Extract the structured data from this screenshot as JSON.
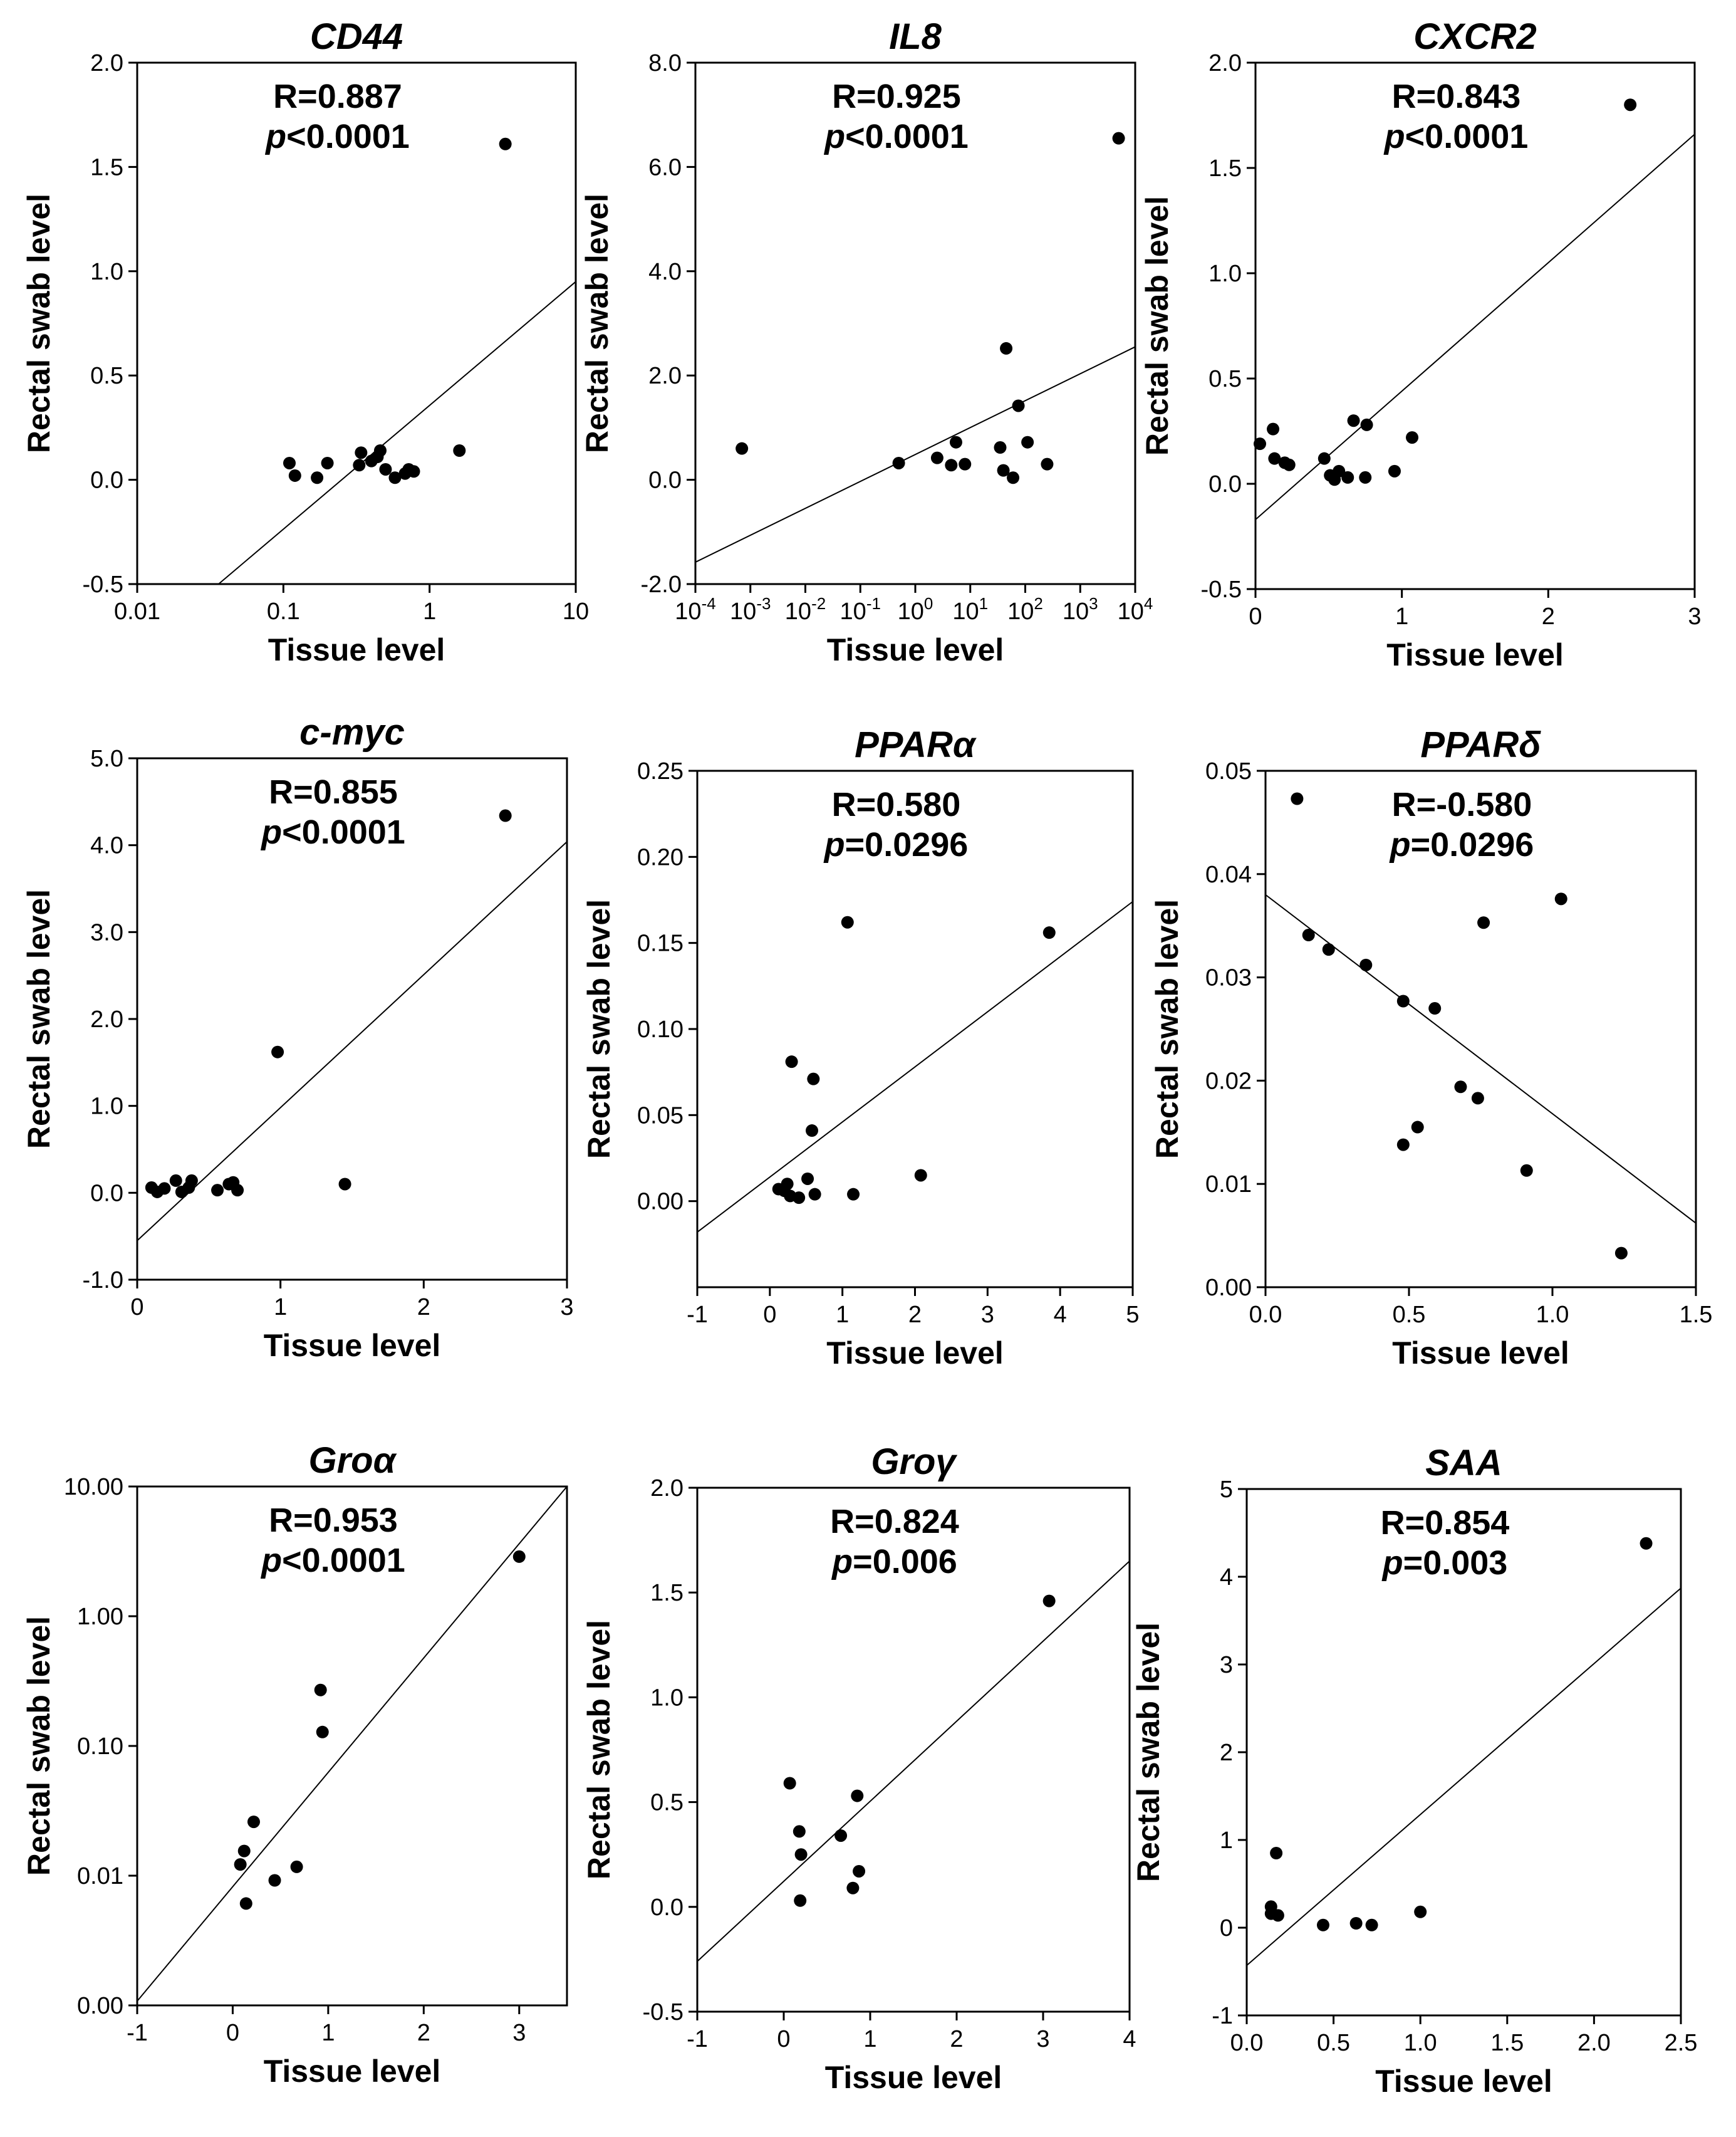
{
  "chart_data": [
    {
      "type": "scatter",
      "title": "CD44",
      "stat_r": "R=0.887",
      "stat_p_symbol": "p",
      "stat_p_rest": "<0.0001",
      "xlabel": "Tissue level",
      "ylabel": "Rectal swab level",
      "xscale": "log",
      "yscale": "linear",
      "xlim": [
        0.01,
        10
      ],
      "ylim": [
        -0.5,
        2.0
      ],
      "xticks": [
        {
          "v": 0.01,
          "label": "0.01"
        },
        {
          "v": 0.1,
          "label": "0.1"
        },
        {
          "v": 1,
          "label": "1"
        },
        {
          "v": 10,
          "label": "10"
        }
      ],
      "yticks": [
        {
          "v": -0.5,
          "label": "-0.5"
        },
        {
          "v": 0.0,
          "label": "0.0"
        },
        {
          "v": 0.5,
          "label": "0.5"
        },
        {
          "v": 1.0,
          "label": "1.0"
        },
        {
          "v": 1.5,
          "label": "1.5"
        },
        {
          "v": 2.0,
          "label": "2.0"
        }
      ],
      "points": [
        [
          0.11,
          0.08
        ],
        [
          0.12,
          0.02
        ],
        [
          0.17,
          0.01
        ],
        [
          0.2,
          0.08
        ],
        [
          0.33,
          0.07
        ],
        [
          0.34,
          0.13
        ],
        [
          0.4,
          0.09
        ],
        [
          0.44,
          0.11
        ],
        [
          0.46,
          0.14
        ],
        [
          0.5,
          0.05
        ],
        [
          0.58,
          0.01
        ],
        [
          0.68,
          0.03
        ],
        [
          0.72,
          0.05
        ],
        [
          0.78,
          0.04
        ],
        [
          1.6,
          0.14
        ],
        [
          3.3,
          1.61
        ]
      ],
      "fit_line": [
        [
          0.036,
          -0.5
        ],
        [
          10,
          0.95
        ]
      ]
    },
    {
      "type": "scatter",
      "title": "IL8",
      "stat_r": "R=0.925",
      "stat_p_symbol": "p",
      "stat_p_rest": "<0.0001",
      "xlabel": "Tissue level",
      "ylabel": "Rectal swab level",
      "xscale": "log",
      "yscale": "linear",
      "xlim": [
        0.0001,
        10000
      ],
      "ylim": [
        -2.0,
        8.0
      ],
      "xticks": [
        {
          "v": 0.0001,
          "base": "10",
          "exp": "-4"
        },
        {
          "v": 0.001,
          "base": "10",
          "exp": "-3"
        },
        {
          "v": 0.01,
          "base": "10",
          "exp": "-2"
        },
        {
          "v": 0.1,
          "base": "10",
          "exp": "-1"
        },
        {
          "v": 1,
          "base": "10",
          "exp": "0"
        },
        {
          "v": 10,
          "base": "10",
          "exp": "1"
        },
        {
          "v": 100,
          "base": "10",
          "exp": "2"
        },
        {
          "v": 1000,
          "base": "10",
          "exp": "3"
        },
        {
          "v": 10000,
          "base": "10",
          "exp": "4"
        }
      ],
      "yticks": [
        {
          "v": -2,
          "label": "-2.0"
        },
        {
          "v": 0,
          "label": "0.0"
        },
        {
          "v": 2,
          "label": "2.0"
        },
        {
          "v": 4,
          "label": "4.0"
        },
        {
          "v": 6,
          "label": "6.0"
        },
        {
          "v": 8,
          "label": "8.0"
        }
      ],
      "points": [
        [
          0.0007,
          0.6
        ],
        [
          0.5,
          0.32
        ],
        [
          2.5,
          0.42
        ],
        [
          4.5,
          0.28
        ],
        [
          5.5,
          0.72
        ],
        [
          8,
          0.3
        ],
        [
          35,
          0.62
        ],
        [
          40,
          0.18
        ],
        [
          45,
          2.52
        ],
        [
          60,
          0.04
        ],
        [
          75,
          1.42
        ],
        [
          110,
          0.72
        ],
        [
          250,
          0.3
        ],
        [
          5000,
          6.55
        ]
      ],
      "fit_line": [
        [
          0.0001,
          -1.58
        ],
        [
          10000,
          2.55
        ]
      ]
    },
    {
      "type": "scatter",
      "title": "CXCR2",
      "stat_r": "R=0.843",
      "stat_p_symbol": "p",
      "stat_p_rest": "<0.0001",
      "xlabel": "Tissue level",
      "ylabel": "Rectal swab level",
      "xscale": "linear",
      "yscale": "linear",
      "xlim": [
        0,
        3
      ],
      "ylim": [
        -0.5,
        2.0
      ],
      "xticks": [
        {
          "v": 0,
          "label": "0"
        },
        {
          "v": 1,
          "label": "1"
        },
        {
          "v": 2,
          "label": "2"
        },
        {
          "v": 3,
          "label": "3"
        }
      ],
      "yticks": [
        {
          "v": -0.5,
          "label": "-0.5"
        },
        {
          "v": 0.0,
          "label": "0.0"
        },
        {
          "v": 0.5,
          "label": "0.5"
        },
        {
          "v": 1.0,
          "label": "1.0"
        },
        {
          "v": 1.5,
          "label": "1.5"
        },
        {
          "v": 2.0,
          "label": "2.0"
        }
      ],
      "points": [
        [
          0.03,
          0.19
        ],
        [
          0.12,
          0.26
        ],
        [
          0.13,
          0.12
        ],
        [
          0.2,
          0.1
        ],
        [
          0.23,
          0.09
        ],
        [
          0.47,
          0.12
        ],
        [
          0.51,
          0.04
        ],
        [
          0.54,
          0.02
        ],
        [
          0.57,
          0.06
        ],
        [
          0.63,
          0.03
        ],
        [
          0.67,
          0.3
        ],
        [
          0.75,
          0.03
        ],
        [
          0.76,
          0.28
        ],
        [
          0.95,
          0.06
        ],
        [
          1.07,
          0.22
        ],
        [
          2.56,
          1.8
        ]
      ],
      "fit_line": [
        [
          0,
          -0.17
        ],
        [
          3,
          1.66
        ]
      ]
    },
    {
      "type": "scatter",
      "title": "c-myc",
      "stat_r": "R=0.855",
      "stat_p_symbol": "p",
      "stat_p_rest": "<0.0001",
      "xlabel": "Tissue level",
      "ylabel": "Rectal swab level",
      "xscale": "linear",
      "yscale": "linear",
      "xlim": [
        0,
        3
      ],
      "ylim": [
        -1.0,
        5.0
      ],
      "xticks": [
        {
          "v": 0,
          "label": "0"
        },
        {
          "v": 1,
          "label": "1"
        },
        {
          "v": 2,
          "label": "2"
        },
        {
          "v": 3,
          "label": "3"
        }
      ],
      "yticks": [
        {
          "v": -1,
          "label": "-1.0"
        },
        {
          "v": 0,
          "label": "0.0"
        },
        {
          "v": 1,
          "label": "1.0"
        },
        {
          "v": 2,
          "label": "2.0"
        },
        {
          "v": 3,
          "label": "3.0"
        },
        {
          "v": 4,
          "label": "4.0"
        },
        {
          "v": 5,
          "label": "5.0"
        }
      ],
      "points": [
        [
          0.1,
          0.06
        ],
        [
          0.14,
          0.01
        ],
        [
          0.19,
          0.05
        ],
        [
          0.27,
          0.14
        ],
        [
          0.31,
          0.01
        ],
        [
          0.36,
          0.06
        ],
        [
          0.38,
          0.14
        ],
        [
          0.56,
          0.03
        ],
        [
          0.64,
          0.1
        ],
        [
          0.67,
          0.12
        ],
        [
          0.7,
          0.03
        ],
        [
          0.98,
          1.62
        ],
        [
          1.45,
          0.1
        ],
        [
          2.57,
          4.34
        ]
      ],
      "fit_line": [
        [
          0,
          -0.55
        ],
        [
          3,
          4.04
        ]
      ]
    },
    {
      "type": "scatter",
      "title": "PPARα",
      "stat_r": "R=0.580",
      "stat_p_symbol": "p",
      "stat_p_rest": "=0.0296",
      "xlabel": "Tissue level",
      "ylabel": "Rectal swab level",
      "xscale": "linear",
      "yscale": "linear",
      "xlim": [
        -1,
        5
      ],
      "ylim": [
        -0.05,
        0.25
      ],
      "xticks": [
        {
          "v": -1,
          "label": "-1"
        },
        {
          "v": 0,
          "label": "0"
        },
        {
          "v": 1,
          "label": "1"
        },
        {
          "v": 2,
          "label": "2"
        },
        {
          "v": 3,
          "label": "3"
        },
        {
          "v": 4,
          "label": "4"
        },
        {
          "v": 5,
          "label": "5"
        }
      ],
      "yticks": [
        {
          "v": 0.0,
          "label": "0.00"
        },
        {
          "v": 0.05,
          "label": "0.05"
        },
        {
          "v": 0.1,
          "label": "0.10"
        },
        {
          "v": 0.15,
          "label": "0.15"
        },
        {
          "v": 0.2,
          "label": "0.20"
        },
        {
          "v": 0.25,
          "label": "0.25"
        }
      ],
      "points": [
        [
          0.12,
          0.007
        ],
        [
          0.2,
          0.006
        ],
        [
          0.24,
          0.01
        ],
        [
          0.28,
          0.003
        ],
        [
          0.3,
          0.081
        ],
        [
          0.4,
          0.002
        ],
        [
          0.52,
          0.013
        ],
        [
          0.58,
          0.041
        ],
        [
          0.6,
          0.071
        ],
        [
          0.62,
          0.004
        ],
        [
          1.07,
          0.162
        ],
        [
          1.15,
          0.004
        ],
        [
          2.08,
          0.015
        ],
        [
          3.85,
          0.156
        ]
      ],
      "fit_line": [
        [
          -1,
          -0.018
        ],
        [
          5,
          0.174
        ]
      ]
    },
    {
      "type": "scatter",
      "title": "PPARδ",
      "stat_r": "R=-0.580",
      "stat_p_symbol": "p",
      "stat_p_rest": "=0.0296",
      "xlabel": "Tissue level",
      "ylabel": "Rectal swab level",
      "xscale": "linear",
      "yscale": "linear",
      "xlim": [
        0,
        1.5
      ],
      "ylim": [
        0,
        0.05
      ],
      "xticks": [
        {
          "v": 0.0,
          "label": "0.0"
        },
        {
          "v": 0.5,
          "label": "0.5"
        },
        {
          "v": 1.0,
          "label": "1.0"
        },
        {
          "v": 1.5,
          "label": "1.5"
        }
      ],
      "yticks": [
        {
          "v": 0.0,
          "label": "0.00"
        },
        {
          "v": 0.01,
          "label": "0.01"
        },
        {
          "v": 0.02,
          "label": "0.02"
        },
        {
          "v": 0.03,
          "label": "0.03"
        },
        {
          "v": 0.04,
          "label": "0.04"
        },
        {
          "v": 0.05,
          "label": "0.05"
        }
      ],
      "points": [
        [
          0.11,
          0.0473
        ],
        [
          0.15,
          0.0341
        ],
        [
          0.22,
          0.0327
        ],
        [
          0.35,
          0.0312
        ],
        [
          0.48,
          0.0277
        ],
        [
          0.59,
          0.027
        ],
        [
          0.48,
          0.0138
        ],
        [
          0.53,
          0.0155
        ],
        [
          0.68,
          0.0194
        ],
        [
          0.74,
          0.0183
        ],
        [
          0.76,
          0.0353
        ],
        [
          0.91,
          0.0113
        ],
        [
          1.03,
          0.0376
        ],
        [
          1.24,
          0.0033
        ]
      ],
      "fit_line": [
        [
          0,
          0.038
        ],
        [
          1.5,
          0.0062
        ]
      ]
    },
    {
      "type": "scatter",
      "title": "Groα",
      "stat_r": "R=0.953",
      "stat_p_symbol": "p",
      "stat_p_rest": "<0.0001",
      "xlabel": "Tissue level",
      "ylabel": "Rectal swab level",
      "xscale": "linear",
      "yscale": "log",
      "xlim": [
        -1,
        3.5
      ],
      "ylim": [
        0.001,
        10
      ],
      "xticks": [
        {
          "v": -1,
          "label": "-1"
        },
        {
          "v": 0,
          "label": "0"
        },
        {
          "v": 1,
          "label": "1"
        },
        {
          "v": 2,
          "label": "2"
        },
        {
          "v": 3,
          "label": "3"
        }
      ],
      "yticks": [
        {
          "v": 0.001,
          "label": "0.00"
        },
        {
          "v": 0.01,
          "label": "0.01"
        },
        {
          "v": 0.1,
          "label": "0.10"
        },
        {
          "v": 1,
          "label": "1.00"
        },
        {
          "v": 10,
          "label": "10.00"
        }
      ],
      "points": [
        [
          0.08,
          0.0122
        ],
        [
          0.12,
          0.0155
        ],
        [
          0.14,
          0.0061
        ],
        [
          0.22,
          0.026
        ],
        [
          0.44,
          0.0092
        ],
        [
          0.67,
          0.0117
        ],
        [
          0.92,
          0.27
        ],
        [
          0.94,
          0.128
        ],
        [
          3.0,
          2.88
        ]
      ],
      "fit_line": [
        [
          -1,
          0.00108
        ],
        [
          3.5,
          10
        ]
      ]
    },
    {
      "type": "scatter",
      "title": "Groγ",
      "stat_r": "R=0.824",
      "stat_p_symbol": "p",
      "stat_p_rest": "=0.006",
      "xlabel": "Tissue level",
      "ylabel": "Rectal swab level",
      "xscale": "linear",
      "yscale": "linear",
      "xlim": [
        -1,
        4
      ],
      "ylim": [
        -0.5,
        2.0
      ],
      "xticks": [
        {
          "v": -1,
          "label": "-1"
        },
        {
          "v": 0,
          "label": "0"
        },
        {
          "v": 1,
          "label": "1"
        },
        {
          "v": 2,
          "label": "2"
        },
        {
          "v": 3,
          "label": "3"
        },
        {
          "v": 4,
          "label": "4"
        }
      ],
      "yticks": [
        {
          "v": -0.5,
          "label": "-0.5"
        },
        {
          "v": 0.0,
          "label": "0.0"
        },
        {
          "v": 0.5,
          "label": "0.5"
        },
        {
          "v": 1.0,
          "label": "1.0"
        },
        {
          "v": 1.5,
          "label": "1.5"
        },
        {
          "v": 2.0,
          "label": "2.0"
        }
      ],
      "points": [
        [
          0.07,
          0.59
        ],
        [
          0.18,
          0.36
        ],
        [
          0.2,
          0.25
        ],
        [
          0.19,
          0.03
        ],
        [
          0.66,
          0.34
        ],
        [
          0.8,
          0.09
        ],
        [
          0.85,
          0.53
        ],
        [
          0.87,
          0.17
        ],
        [
          3.07,
          1.46
        ]
      ],
      "fit_line": [
        [
          -1,
          -0.26
        ],
        [
          4,
          1.65
        ]
      ]
    },
    {
      "type": "scatter",
      "title": "SAA",
      "stat_r": "R=0.854",
      "stat_p_symbol": "p",
      "stat_p_rest": "=0.003",
      "xlabel": "Tissue level",
      "ylabel": "Rectal swab level",
      "xscale": "linear",
      "yscale": "linear",
      "xlim": [
        0,
        2.5
      ],
      "ylim": [
        -1,
        5
      ],
      "xticks": [
        {
          "v": 0.0,
          "label": "0.0"
        },
        {
          "v": 0.5,
          "label": "0.5"
        },
        {
          "v": 1.0,
          "label": "1.0"
        },
        {
          "v": 1.5,
          "label": "1.5"
        },
        {
          "v": 2.0,
          "label": "2.0"
        },
        {
          "v": 2.5,
          "label": "2.5"
        }
      ],
      "yticks": [
        {
          "v": -1,
          "label": "-1"
        },
        {
          "v": 0,
          "label": "0"
        },
        {
          "v": 1,
          "label": "1"
        },
        {
          "v": 2,
          "label": "2"
        },
        {
          "v": 3,
          "label": "3"
        },
        {
          "v": 4,
          "label": "4"
        },
        {
          "v": 5,
          "label": "5"
        }
      ],
      "points": [
        [
          0.14,
          0.24
        ],
        [
          0.14,
          0.16
        ],
        [
          0.17,
          0.85
        ],
        [
          0.18,
          0.14
        ],
        [
          0.44,
          0.03
        ],
        [
          0.63,
          0.05
        ],
        [
          0.72,
          0.03
        ],
        [
          1.0,
          0.18
        ],
        [
          2.3,
          4.38
        ]
      ],
      "fit_line": [
        [
          0,
          -0.43
        ],
        [
          2.5,
          3.87
        ]
      ]
    }
  ]
}
